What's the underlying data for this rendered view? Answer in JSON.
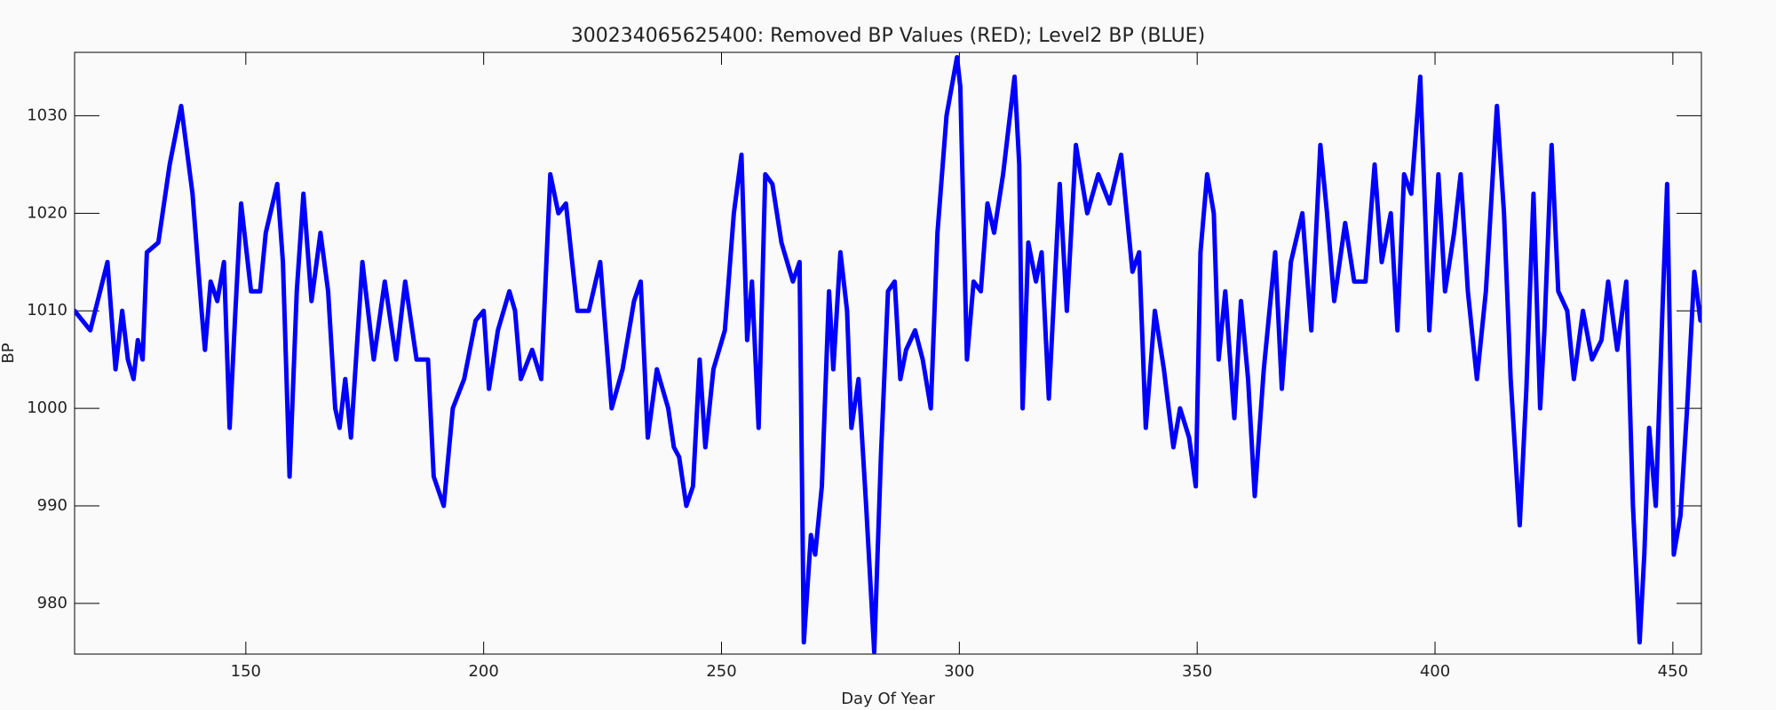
{
  "chart_data": {
    "type": "line",
    "title": "300234065625400: Removed BP Values (RED); Level2 BP (BLUE)",
    "x_label": "Day Of Year",
    "y_label": "BP",
    "color": "#0000ff",
    "x": [
      114,
      117.3,
      120.9,
      122.6,
      124,
      125.2,
      126.4,
      127.3,
      128.3,
      129.2,
      131.6,
      134,
      136.4,
      138.8,
      140.7,
      141.4,
      142.6,
      144,
      145.4,
      146.6,
      147.8,
      149,
      151.1,
      153,
      154.2,
      156.6,
      157.8,
      159.2,
      160.7,
      162.1,
      163.8,
      165.7,
      167.3,
      168.8,
      169.7,
      170.9,
      172.1,
      174.5,
      176.9,
      179.2,
      181.6,
      183.5,
      185.9,
      188.3,
      189.5,
      191.6,
      193.5,
      195.9,
      198.3,
      200,
      201.1,
      203,
      205.4,
      206.6,
      207.8,
      210.2,
      212.1,
      214,
      215.7,
      217.3,
      219.7,
      222.1,
      224.5,
      226.9,
      229.2,
      231.6,
      233,
      234.5,
      236.4,
      238.8,
      240,
      241.1,
      242.6,
      244,
      245.4,
      246.6,
      248.3,
      250.7,
      252.6,
      254.2,
      255.4,
      256.4,
      257.8,
      259.2,
      260.7,
      262.6,
      265,
      266.4,
      267.3,
      268.8,
      269.7,
      271.1,
      272.6,
      273.5,
      275,
      276.4,
      277.3,
      278.8,
      280.4,
      282.1,
      283.5,
      285,
      286.4,
      287.6,
      288.8,
      290.7,
      292.3,
      294,
      295.4,
      297.3,
      299.5,
      300.2,
      301.6,
      303,
      304.5,
      305.9,
      307.3,
      309.2,
      311.6,
      312.6,
      313.3,
      314.5,
      316.1,
      317.3,
      318.8,
      321.1,
      322.6,
      324.5,
      326.9,
      329.2,
      331.6,
      334,
      336.4,
      337.8,
      339.2,
      341.1,
      343,
      345,
      346.4,
      348.3,
      349.7,
      350.7,
      352.1,
      353.5,
      354.5,
      355.9,
      357.8,
      359.2,
      360.7,
      362.1,
      364,
      366.4,
      367.8,
      369.7,
      372.1,
      374,
      375.9,
      377.3,
      378.8,
      381.1,
      383,
      385.4,
      387.3,
      388.8,
      390.7,
      392.1,
      393.5,
      395,
      396.9,
      398.8,
      400.7,
      402.1,
      404,
      405.4,
      406.9,
      408.8,
      410.7,
      413,
      414.5,
      415.9,
      417.8,
      419.2,
      420.7,
      422.1,
      423,
      424.5,
      425.9,
      427.8,
      429.2,
      431.1,
      433,
      435,
      436.4,
      438.3,
      440.2,
      441.6,
      443,
      444,
      445,
      446.4,
      447.8,
      448.8,
      450.2,
      451.6,
      453,
      454.5,
      455.8
    ],
    "values": [
      1010,
      1008,
      1015,
      1004,
      1010,
      1005,
      1003,
      1007,
      1005,
      1016,
      1017,
      1025,
      1031,
      1022,
      1010,
      1006,
      1013,
      1011,
      1015,
      998,
      1010,
      1021,
      1012,
      1012,
      1018,
      1023,
      1015,
      993,
      1012,
      1022,
      1011,
      1018,
      1012,
      1000,
      998,
      1003,
      997,
      1015,
      1005,
      1013,
      1005,
      1013,
      1005,
      1005,
      993,
      990,
      1000,
      1003,
      1009,
      1010,
      1002,
      1008,
      1012,
      1010,
      1003,
      1006,
      1003,
      1024,
      1020,
      1021,
      1010,
      1010,
      1015,
      1000,
      1004,
      1011,
      1013,
      997,
      1004,
      1000,
      996,
      995,
      990,
      992,
      1005,
      996,
      1004,
      1008,
      1020,
      1026,
      1007,
      1013,
      998,
      1024,
      1023,
      1017,
      1013,
      1015,
      976,
      987,
      985,
      992,
      1012,
      1004,
      1016,
      1010,
      998,
      1003,
      990,
      975,
      995,
      1012,
      1013,
      1003,
      1006,
      1008,
      1005,
      1000,
      1018,
      1030,
      1036,
      1033,
      1005,
      1013,
      1012,
      1021,
      1018,
      1024,
      1034,
      1025,
      1000,
      1017,
      1013,
      1016,
      1001,
      1023,
      1010,
      1027,
      1020,
      1024,
      1021,
      1026,
      1014,
      1016,
      998,
      1010,
      1004,
      996,
      1000,
      997,
      992,
      1016,
      1024,
      1020,
      1005,
      1012,
      999,
      1011,
      1003,
      991,
      1004,
      1016,
      1002,
      1015,
      1020,
      1008,
      1027,
      1020,
      1011,
      1019,
      1013,
      1013,
      1025,
      1015,
      1020,
      1008,
      1024,
      1022,
      1034,
      1008,
      1024,
      1012,
      1018,
      1024,
      1012,
      1003,
      1012,
      1031,
      1020,
      1003,
      988,
      1002,
      1022,
      1000,
      1008,
      1027,
      1012,
      1010,
      1003,
      1010,
      1005,
      1007,
      1013,
      1006,
      1013,
      990,
      976,
      985,
      998,
      990,
      1010,
      1023,
      985,
      989,
      1000,
      1014,
      1009
    ],
    "xlim": [
      114,
      456
    ],
    "ylim": [
      974.8,
      1036.5
    ],
    "xticks": [
      150,
      200,
      250,
      300,
      350,
      400,
      450
    ],
    "yticks": [
      980,
      990,
      1000,
      1010,
      1020,
      1030
    ]
  }
}
